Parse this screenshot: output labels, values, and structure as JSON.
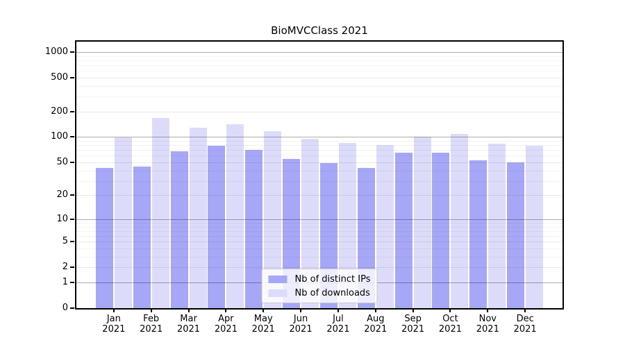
{
  "title": "BioMVCClass 2021",
  "legend": {
    "items": [
      {
        "label": "Nb of distinct IPs",
        "color": "#a7a7f7"
      },
      {
        "label": "Nb of downloads",
        "color": "#dcdcfa"
      }
    ]
  },
  "chart_data": {
    "type": "bar",
    "title": "BioMVCClass 2021",
    "categories": [
      "Jan 2021",
      "Feb 2021",
      "Mar 2021",
      "Apr 2021",
      "May 2021",
      "Jun 2021",
      "Jul 2021",
      "Aug 2021",
      "Sep 2021",
      "Oct 2021",
      "Nov 2021",
      "Dec 2021"
    ],
    "series": [
      {
        "name": "Nb of distinct IPs",
        "color": "#a7a7f7",
        "values": [
          43,
          45,
          68,
          79,
          70,
          55,
          49,
          43,
          65,
          65,
          53,
          50
        ]
      },
      {
        "name": "Nb of downloads",
        "color": "#dcdcfa",
        "values": [
          100,
          168,
          130,
          141,
          117,
          96,
          85,
          80,
          101,
          109,
          84,
          79
        ]
      }
    ],
    "xlabel": "",
    "ylabel": "",
    "y_scale": "log1p",
    "y_ticks": [
      0,
      1,
      2,
      5,
      10,
      20,
      50,
      100,
      200,
      500,
      1000
    ],
    "ylim": [
      0,
      1324
    ],
    "grid": true,
    "legend_position": "lower center"
  }
}
